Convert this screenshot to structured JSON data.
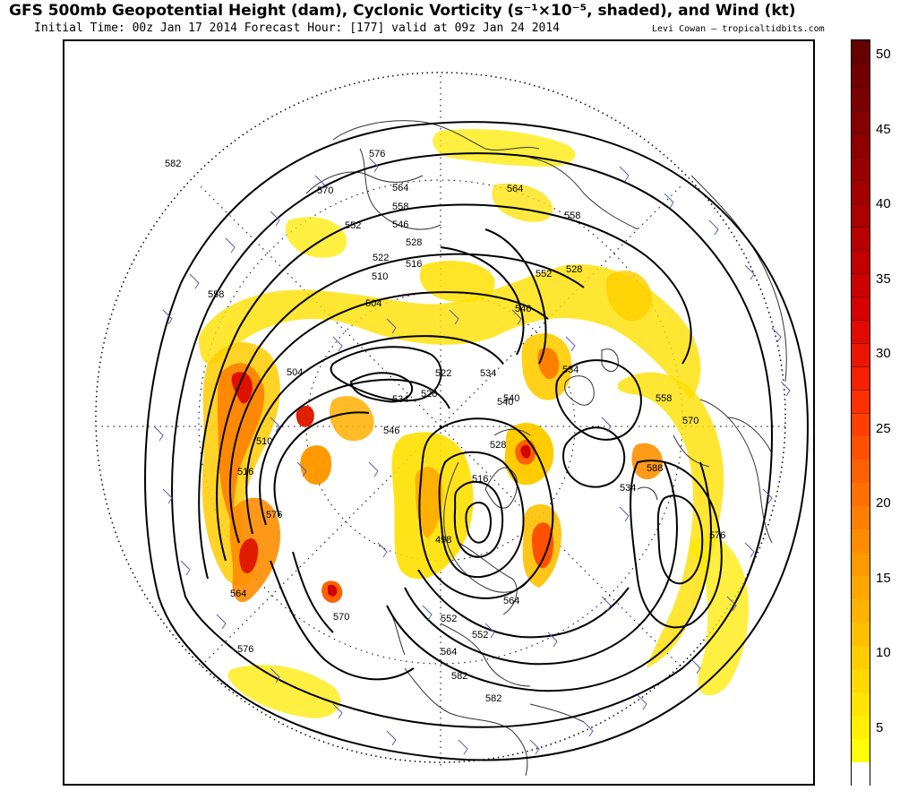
{
  "header": {
    "title": "GFS 500mb Geopotential Height (dam), Cyclonic Vorticity (s⁻¹×10⁻⁵, shaded), and Wind (kt)",
    "subtitle": "Initial Time: 00z Jan 17 2014 Forecast Hour: [177] valid at 09z Jan 24 2014",
    "credit": "Levi Cowan – tropicaltidbits.com"
  },
  "map": {
    "projection": "north-polar-stereographic",
    "height_contour_labels": [
      "576",
      "582",
      "570",
      "564",
      "558",
      "552",
      "546",
      "528",
      "522",
      "516",
      "510",
      "504",
      "558",
      "546",
      "552",
      "534",
      "522",
      "528",
      "534",
      "540",
      "546",
      "510",
      "516",
      "528",
      "498",
      "552",
      "558",
      "564",
      "570",
      "576",
      "582",
      "588",
      "534",
      "564",
      "570",
      "576",
      "552",
      "564",
      "576",
      "582",
      "528",
      "516",
      "504",
      "540",
      "534",
      "558",
      "564"
    ],
    "lows": [
      "498",
      "504",
      "510",
      "516"
    ],
    "highs": [
      "588",
      "582"
    ]
  },
  "colorbar": {
    "tick_labels": [
      "50",
      "45",
      "40",
      "35",
      "30",
      "25",
      "20",
      "15",
      "10",
      "5"
    ],
    "colors": [
      "#ffffff",
      "#ffff00",
      "#fff000",
      "#ffe400",
      "#ffd800",
      "#ffcc00",
      "#ffbf00",
      "#ffb300",
      "#ffa600",
      "#ff9900",
      "#ff8c00",
      "#ff7f00",
      "#ff7000",
      "#ff6000",
      "#ff5000",
      "#ff4000",
      "#ff3000",
      "#f52000",
      "#eb1500",
      "#e00a00",
      "#d60000",
      "#cc0000",
      "#c20000",
      "#b80000",
      "#ad0000",
      "#a30000",
      "#990000",
      "#8f0000",
      "#850000",
      "#7a0000",
      "#700000",
      "#660000"
    ]
  }
}
